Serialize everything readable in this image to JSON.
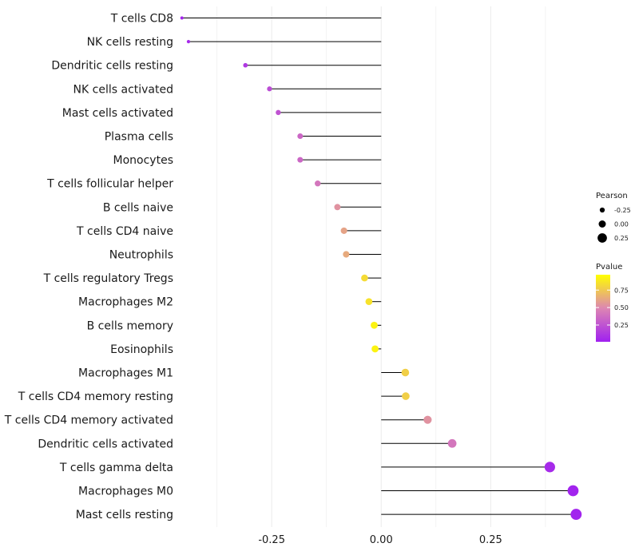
{
  "chart_data": {
    "type": "lollipop",
    "title": "",
    "xlabel": "",
    "ylabel": "",
    "grid": true,
    "categories": [
      "T cells CD8",
      "NK cells resting",
      "Dendritic cells resting",
      "NK cells activated",
      "Mast cells activated",
      "Plasma cells",
      "Monocytes",
      "T cells follicular helper",
      "B cells naive",
      "T cells CD4 naive",
      "Neutrophils",
      "T cells regulatory  Tregs ",
      "Macrophages M2",
      "B cells memory",
      "Eosinophils",
      "Macrophages M1",
      "T cells CD4 memory resting",
      "T cells CD4 memory activated",
      "Dendritic cells activated",
      "T cells gamma delta",
      "Macrophages M0",
      "Mast cells resting"
    ],
    "values": [
      -0.455,
      -0.44,
      -0.31,
      -0.255,
      -0.235,
      -0.185,
      -0.185,
      -0.145,
      -0.1,
      -0.085,
      -0.08,
      -0.038,
      -0.028,
      -0.016,
      -0.014,
      0.055,
      0.056,
      0.106,
      0.162,
      0.385,
      0.438,
      0.445
    ],
    "pvalues": [
      0.03,
      0.05,
      0.12,
      0.22,
      0.25,
      0.35,
      0.35,
      0.42,
      0.55,
      0.62,
      0.65,
      0.85,
      0.88,
      0.95,
      0.95,
      0.8,
      0.8,
      0.55,
      0.42,
      0.05,
      0.02,
      0.02
    ],
    "xlim": [
      -0.46,
      0.47
    ],
    "xticks": [
      -0.25,
      0.0,
      0.25
    ],
    "xtick_labels": [
      "-0.25",
      "0.00",
      "0.25"
    ],
    "legend_position": "right",
    "legends": {
      "size": {
        "title": "Pearson",
        "values": [
          -0.25,
          0.0,
          0.25
        ],
        "labels": [
          "-0.25",
          "0.00",
          "0.25"
        ]
      },
      "color": {
        "title": "Pvalue",
        "breaks": [
          0.75,
          0.5,
          0.25
        ],
        "labels": [
          "0.75",
          "0.50",
          "0.25"
        ],
        "range": [
          0.01,
          0.97
        ],
        "low_color": "#a020f0",
        "mid_color": "#dd86b2",
        "high_color": "#ffff00"
      }
    },
    "colors": {
      "segment": "#000000",
      "grid": "#ebebeb"
    }
  }
}
